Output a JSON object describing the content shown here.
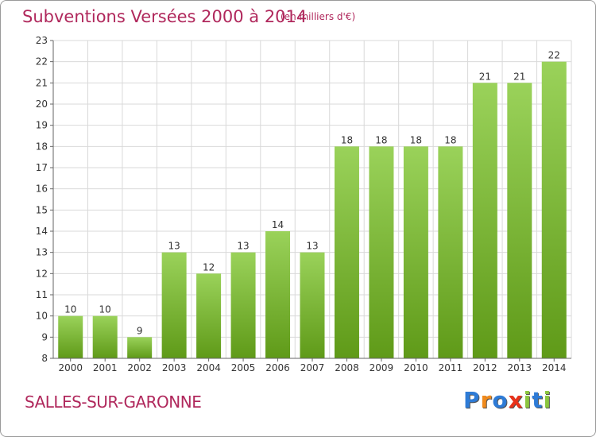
{
  "title": "Subventions Versées 2000 à 2014",
  "subtitle": "(en milliers d'€)",
  "commune": "SALLES-SUR-GARONNE",
  "logo": {
    "letters": [
      "P",
      "r",
      "o",
      "x",
      "i",
      "t",
      "i"
    ],
    "colors": [
      "#2e7bd6",
      "#f08a1c",
      "#2e7bd6",
      "#e8321a",
      "#8cc63f",
      "#2e7bd6",
      "#8cc63f"
    ]
  },
  "colors": {
    "title": "#b0285c",
    "bar_light": "#9ad25a",
    "bar_dark": "#5f9a18",
    "grid": "#d9d9d9",
    "axis": "#666666"
  },
  "chart_data": {
    "type": "bar",
    "title": "Subventions Versées 2000 à 2014",
    "subtitle": "(en milliers d'€)",
    "categories": [
      "2000",
      "2001",
      "2002",
      "2003",
      "2004",
      "2005",
      "2006",
      "2007",
      "2008",
      "2009",
      "2010",
      "2011",
      "2012",
      "2013",
      "2014"
    ],
    "values": [
      10,
      10,
      9,
      13,
      12,
      13,
      14,
      13,
      18,
      18,
      18,
      18,
      21,
      21,
      22
    ],
    "ylim": [
      8,
      23
    ],
    "yticks": [
      "8",
      "9",
      "10",
      "11",
      "12",
      "13",
      "14",
      "15",
      "16",
      "17",
      "18",
      "19",
      "20",
      "21",
      "22",
      "23"
    ],
    "grid": true,
    "data_labels": true
  }
}
